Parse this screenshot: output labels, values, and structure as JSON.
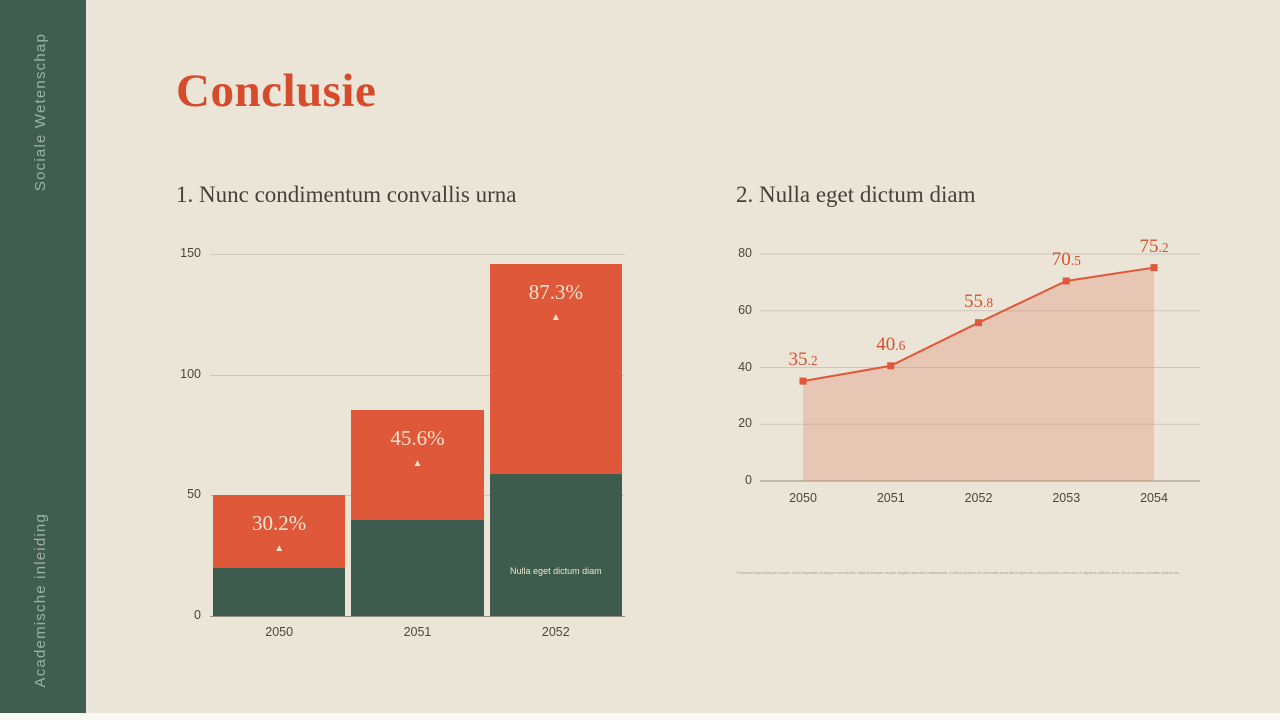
{
  "title": "Conclusie",
  "sidebar": {
    "top_label": "Sociale Wetenschap",
    "bottom_label": "Academische inleiding"
  },
  "sections": [
    {
      "heading": "1. Nunc condimentum convallis urna"
    },
    {
      "heading": "2. Nulla eget dictum diam"
    }
  ],
  "fine_print": "Praesent eget tristique mauris. Nam imperdiet ut augue non lacinia. Mauris semper augue sagittis interdum malesuada. In libero ipsum, id venenatis urna diam eget nisl, nam porta leo urna nec ut dapibus ultrices sem. Nunc massa convallis aptent nec elementum urna vitae ut enim.",
  "colors": {
    "background": "#EBE5D8",
    "sidebar_green": "#3F5D50",
    "title_red": "#D64B2C",
    "heading_text": "#45413A",
    "accent_orange": "#E0583A",
    "accent_green": "#3E5C4D",
    "gridline": "#CFC8B9",
    "axis_line": "#97907F",
    "axis_text": "#4B463E",
    "label_cream": "#F2E6D0",
    "point_label_red": "#D8502F"
  },
  "chart_data": [
    {
      "type": "bar",
      "stacked": true,
      "title": "1. Nunc condimentum convallis urna",
      "categories": [
        "2050",
        "2051",
        "2052"
      ],
      "series": [
        {
          "name": "base-segment",
          "color": "#3E5C4D",
          "values": [
            19.8,
            39.7,
            58.7
          ]
        },
        {
          "name": "top-segment",
          "color": "#E0583A",
          "values": [
            30.2,
            45.6,
            87.3
          ]
        }
      ],
      "bar_labels": [
        "30.2%",
        "45.6%",
        "87.3%"
      ],
      "bar_label_marker": "▲",
      "inside_note": {
        "category_index": 2,
        "text": "Nulla eget dictum diam"
      },
      "xlabel": "",
      "ylabel": "",
      "ylim": [
        0,
        150
      ],
      "yticks": [
        0,
        50,
        100,
        150
      ],
      "grid": true,
      "legend": false
    },
    {
      "type": "area",
      "title": "2. Nulla eget dictum diam",
      "x": [
        "2050",
        "2051",
        "2052",
        "2053",
        "2054"
      ],
      "values": [
        35.2,
        40.6,
        55.8,
        70.5,
        75.2
      ],
      "point_labels": [
        "35.2",
        "40.6",
        "55.8",
        "70.5",
        "75.2"
      ],
      "xlabel": "",
      "ylabel": "",
      "ylim": [
        0,
        80
      ],
      "yticks": [
        0,
        20,
        40,
        60,
        80
      ],
      "line_color": "#E0583A",
      "area_fill": "rgba(224,106,72,0.25)",
      "marker": "square",
      "grid": true,
      "legend": false
    }
  ]
}
